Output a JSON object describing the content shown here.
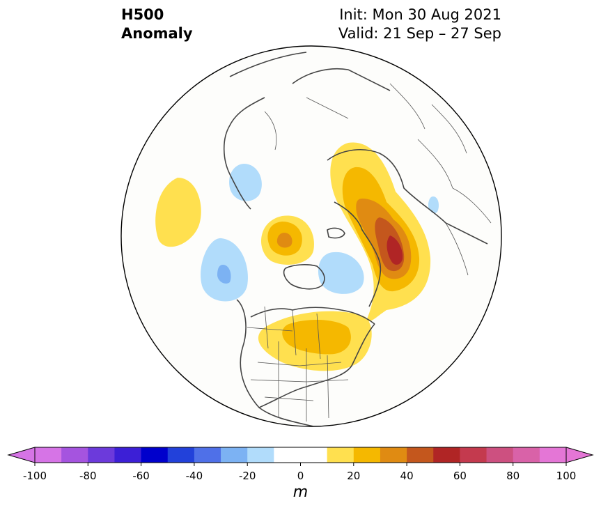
{
  "title": {
    "variable": "H500",
    "subtitle": "Anomaly",
    "init": "Init: Mon 30 Aug 2021",
    "valid": "Valid: 21 Sep – 27 Sep"
  },
  "colorbar": {
    "unit": "m",
    "ticks": [
      "-100",
      "-80",
      "-60",
      "-40",
      "-20",
      "0",
      "20",
      "40",
      "60",
      "80",
      "100"
    ],
    "min": -100,
    "max": 100,
    "step": 10,
    "colors": [
      "#d674e6",
      "#a554df",
      "#6c3adb",
      "#3c1fd6",
      "#0000cc",
      "#2241da",
      "#4f70e8",
      "#7cb2f3",
      "#b1dcfb",
      "#ffffff",
      "#ffffff",
      "#ffe04f",
      "#f5b800",
      "#e08b12",
      "#c4571d",
      "#b02525",
      "#c43a4e",
      "#cd5080",
      "#d962a8",
      "#e476d6"
    ],
    "extend_low_color": "#d674e6",
    "extend_high_color": "#e476d6"
  },
  "map": {
    "projection": "north-polar-stereographic",
    "land_line_color": "#444444",
    "anomaly_centers": [
      {
        "region": "north-pacific",
        "value": 15
      },
      {
        "region": "bering-sea",
        "value": -25
      },
      {
        "region": "alaska-arctic",
        "value": 35
      },
      {
        "region": "east-siberian-sea",
        "value": -15
      },
      {
        "region": "greenland-sea",
        "value": -15
      },
      {
        "region": "barents-kara",
        "value": 55
      },
      {
        "region": "canada-great-lakes",
        "value": 35
      },
      {
        "region": "central-asia",
        "value": -15
      }
    ]
  }
}
